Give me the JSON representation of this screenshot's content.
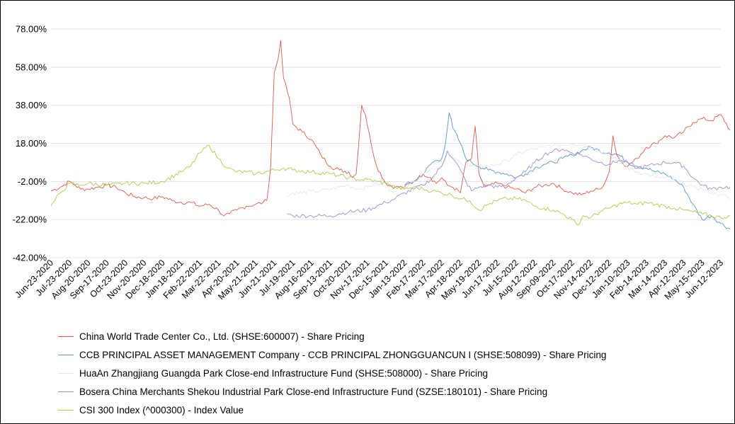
{
  "chart_data": {
    "type": "line",
    "title": "",
    "xlabel": "",
    "ylabel": "",
    "ylim": [
      -42,
      78
    ],
    "y_ticks": [
      "78.00%",
      "58.00%",
      "38.00%",
      "18.00%",
      "-2.00%",
      "-22.00%",
      "-42.00%"
    ],
    "y_tick_values": [
      78,
      58,
      38,
      18,
      -2,
      -22,
      -42
    ],
    "x_ticks": [
      "Jun-23-2020",
      "Jul-23-2020",
      "Aug-20-2020",
      "Sep-17-2020",
      "Oct-23-2020",
      "Nov-20-2020",
      "Dec-18-2020",
      "Jan-18-2021",
      "Feb-22-2021",
      "Mar-22-2021",
      "Apr-20-2021",
      "May-21-2021",
      "Jun-21-2021",
      "Jul-19-2021",
      "Aug-16-2021",
      "Sep-13-2021",
      "Oct-20-2021",
      "Nov-17-2021",
      "Dec-15-2021",
      "Jan-13-2022",
      "Feb-17-2022",
      "Mar-17-2022",
      "Apr-18-2022",
      "May-19-2022",
      "Jun-17-2022",
      "Jul-15-2022",
      "Aug-12-2022",
      "Sep-09-2022",
      "Oct-17-2022",
      "Nov-14-2022",
      "Dec-12-2022",
      "Jan-10-2023",
      "Feb-14-2023",
      "Mar-14-2023",
      "Apr-12-2023",
      "May-15-2023",
      "Jun-12-2023"
    ],
    "grid": true,
    "legend_position": "bottom",
    "series": [
      {
        "name": "China World Trade Center Co., Ltd. (SHSE:600007) - Share Pricing",
        "color": "#e05a4e",
        "points": [
          [
            0,
            -7
          ],
          [
            0.5,
            -5
          ],
          [
            1,
            -2
          ],
          [
            1.3,
            -4
          ],
          [
            1.6,
            -6
          ],
          [
            2,
            -6
          ],
          [
            2.5,
            -5
          ],
          [
            3,
            -4
          ],
          [
            3.5,
            -5
          ],
          [
            4,
            -8
          ],
          [
            4.5,
            -10
          ],
          [
            5,
            -10.5
          ],
          [
            5.5,
            -11
          ],
          [
            6,
            -10
          ],
          [
            6.5,
            -12
          ],
          [
            7,
            -13
          ],
          [
            7.5,
            -13
          ],
          [
            8,
            -15
          ],
          [
            8.5,
            -14
          ],
          [
            9,
            -17
          ],
          [
            9.3,
            -20
          ],
          [
            9.6,
            -19
          ],
          [
            10,
            -17
          ],
          [
            10.5,
            -15
          ],
          [
            11,
            -14
          ],
          [
            11.4,
            -13
          ],
          [
            11.6,
            -12
          ],
          [
            11.8,
            5
          ],
          [
            12,
            55
          ],
          [
            12.2,
            62
          ],
          [
            12.35,
            72
          ],
          [
            12.5,
            52
          ],
          [
            12.8,
            42
          ],
          [
            13,
            28
          ],
          [
            13.5,
            24
          ],
          [
            14,
            20
          ],
          [
            14.5,
            12
          ],
          [
            15,
            6
          ],
          [
            15.5,
            4
          ],
          [
            16,
            3
          ],
          [
            16.2,
            0
          ],
          [
            16.4,
            2
          ],
          [
            16.7,
            38
          ],
          [
            16.9,
            33
          ],
          [
            17.2,
            18
          ],
          [
            17.5,
            6
          ],
          [
            18,
            -3
          ],
          [
            18.5,
            -5
          ],
          [
            19,
            -5
          ],
          [
            19.5,
            -2
          ],
          [
            20,
            2
          ],
          [
            20.4,
            0
          ],
          [
            20.7,
            -3
          ],
          [
            21,
            0
          ],
          [
            21.3,
            -4
          ],
          [
            21.6,
            -5
          ],
          [
            22,
            -8
          ],
          [
            22.3,
            8
          ],
          [
            22.6,
            10
          ],
          [
            22.8,
            27
          ],
          [
            23,
            2
          ],
          [
            23.3,
            -5
          ],
          [
            23.6,
            -4
          ],
          [
            24,
            -3
          ],
          [
            24.5,
            -5
          ],
          [
            25,
            -6
          ],
          [
            25.5,
            -8
          ],
          [
            26,
            -5
          ],
          [
            26.5,
            -4
          ],
          [
            27,
            -3
          ],
          [
            27.5,
            -6
          ],
          [
            28,
            -8
          ],
          [
            28.5,
            -9
          ],
          [
            29,
            -7
          ],
          [
            29.5,
            -6
          ],
          [
            29.8,
            -2
          ],
          [
            30,
            3
          ],
          [
            30.2,
            22
          ],
          [
            30.4,
            12
          ],
          [
            30.7,
            8
          ],
          [
            31,
            6
          ],
          [
            31.5,
            10
          ],
          [
            32,
            16
          ],
          [
            32.5,
            18
          ],
          [
            33,
            22
          ],
          [
            33.5,
            21
          ],
          [
            34,
            24
          ],
          [
            34.5,
            29
          ],
          [
            35,
            31
          ],
          [
            35.5,
            30
          ],
          [
            36,
            33
          ],
          [
            36.5,
            25
          ]
        ]
      },
      {
        "name": "CCB PRINCIPAL ASSET MANAGEMENT Company - CCB PRINCIPAL ZHONGGUANCUN I (SHSE:508099) - Share Pricing",
        "color": "#5b95cf",
        "points": [
          [
            19,
            -4
          ],
          [
            19.5,
            -2
          ],
          [
            20,
            2
          ],
          [
            20.5,
            8
          ],
          [
            21,
            10
          ],
          [
            21.2,
            18
          ],
          [
            21.4,
            34
          ],
          [
            21.6,
            26
          ],
          [
            22,
            18
          ],
          [
            22.3,
            10
          ],
          [
            22.6,
            8
          ],
          [
            23,
            6
          ],
          [
            23.5,
            4
          ],
          [
            24,
            3
          ],
          [
            24.5,
            2
          ],
          [
            25,
            0
          ],
          [
            25.5,
            2
          ],
          [
            26,
            5
          ],
          [
            26.5,
            7
          ],
          [
            27,
            8
          ],
          [
            27.5,
            10
          ],
          [
            28,
            12
          ],
          [
            28.5,
            14
          ],
          [
            29,
            16
          ],
          [
            29.5,
            14
          ],
          [
            30,
            13
          ],
          [
            30.5,
            12
          ],
          [
            31,
            8
          ],
          [
            31.5,
            6
          ],
          [
            32,
            5
          ],
          [
            32.5,
            3
          ],
          [
            33,
            2
          ],
          [
            33.5,
            -1
          ],
          [
            34,
            -5
          ],
          [
            34.5,
            -14
          ],
          [
            35,
            -22
          ],
          [
            35.5,
            -20
          ],
          [
            36,
            -24
          ],
          [
            36.5,
            -27
          ]
        ]
      },
      {
        "name": "HuaAn Zhangjiang Guangda Park Close-end Infrastructure Fund (SHSE:508000) - Share Pricing",
        "color": "#e6e6ee",
        "points": [
          [
            12.7,
            -10
          ],
          [
            13,
            -8
          ],
          [
            13.5,
            -8
          ],
          [
            14,
            -7
          ],
          [
            14.5,
            -7
          ],
          [
            15,
            -6
          ],
          [
            15.5,
            -5
          ],
          [
            16,
            -4
          ],
          [
            16.5,
            -6
          ],
          [
            17,
            -5
          ],
          [
            17.5,
            -3
          ],
          [
            18,
            -5
          ],
          [
            18.5,
            -7
          ],
          [
            19,
            -5
          ],
          [
            19.5,
            -2
          ],
          [
            20,
            2
          ],
          [
            20.5,
            5
          ],
          [
            21,
            6
          ],
          [
            21.3,
            14
          ],
          [
            21.6,
            10
          ],
          [
            22,
            8
          ],
          [
            22.5,
            6
          ],
          [
            23,
            6
          ],
          [
            23.5,
            6
          ],
          [
            24,
            7
          ],
          [
            24.5,
            9
          ],
          [
            25,
            12
          ],
          [
            25.5,
            14
          ],
          [
            26,
            15
          ],
          [
            26.5,
            16
          ],
          [
            27,
            17
          ],
          [
            27.5,
            17
          ],
          [
            28,
            18
          ],
          [
            28.5,
            17
          ],
          [
            29,
            16
          ],
          [
            29.5,
            14
          ],
          [
            30,
            12
          ],
          [
            30.5,
            9
          ],
          [
            31,
            5
          ],
          [
            31.5,
            3
          ],
          [
            32,
            2
          ],
          [
            32.5,
            0
          ],
          [
            33,
            0
          ],
          [
            33.5,
            -1
          ],
          [
            34,
            -3
          ],
          [
            34.5,
            -5
          ],
          [
            35,
            -6
          ],
          [
            35.5,
            -8
          ],
          [
            36,
            -9
          ],
          [
            36.5,
            -11
          ]
        ]
      },
      {
        "name": "Bosera China Merchants Shekou Industrial Park Close-end Infrastructure Fund (SZSE:180101) - Share Pricing",
        "color": "#9e8fd8",
        "points": [
          [
            12.7,
            -19
          ],
          [
            13,
            -20
          ],
          [
            14,
            -20
          ],
          [
            15,
            -20
          ],
          [
            15.5,
            -19
          ],
          [
            16,
            -18
          ],
          [
            17,
            -17
          ],
          [
            17.5,
            -15
          ],
          [
            18,
            -13
          ],
          [
            18.5,
            -11
          ],
          [
            19,
            -8
          ],
          [
            19.5,
            -6
          ],
          [
            20,
            -4
          ],
          [
            20.5,
            0
          ],
          [
            21,
            6
          ],
          [
            21.3,
            14
          ],
          [
            21.6,
            10
          ],
          [
            22,
            4
          ],
          [
            22.3,
            -2
          ],
          [
            22.6,
            -7
          ],
          [
            23,
            -5
          ],
          [
            23.5,
            -4
          ],
          [
            24,
            -5
          ],
          [
            24.5,
            -4
          ],
          [
            25,
            0
          ],
          [
            25.5,
            3
          ],
          [
            26,
            8
          ],
          [
            26.5,
            12
          ],
          [
            27,
            14
          ],
          [
            27.5,
            15
          ],
          [
            28,
            13
          ],
          [
            28.5,
            12
          ],
          [
            29,
            10
          ],
          [
            29.5,
            8
          ],
          [
            30,
            7
          ],
          [
            30.5,
            9
          ],
          [
            31,
            8
          ],
          [
            31.5,
            5
          ],
          [
            32,
            6
          ],
          [
            32.5,
            7
          ],
          [
            33,
            8
          ],
          [
            33.5,
            8
          ],
          [
            34,
            6
          ],
          [
            34.5,
            0
          ],
          [
            35,
            -4
          ],
          [
            35.5,
            -6
          ],
          [
            36,
            -5
          ],
          [
            36.5,
            -5
          ]
        ]
      },
      {
        "name": "CSI 300 Index (^000300) - Index Value",
        "color": "#aacb4b",
        "points": [
          [
            0,
            -15
          ],
          [
            0.5,
            -8
          ],
          [
            1,
            -3
          ],
          [
            1.5,
            -4
          ],
          [
            2,
            -3
          ],
          [
            3,
            -4
          ],
          [
            4,
            -3
          ],
          [
            5,
            -3
          ],
          [
            6,
            -2
          ],
          [
            7,
            3
          ],
          [
            7.5,
            6
          ],
          [
            8,
            13
          ],
          [
            8.5,
            17
          ],
          [
            9,
            10
          ],
          [
            9.5,
            5
          ],
          [
            10,
            3
          ],
          [
            10.5,
            3
          ],
          [
            11,
            2
          ],
          [
            11.5,
            3
          ],
          [
            12,
            4
          ],
          [
            12.5,
            5
          ],
          [
            13,
            4
          ],
          [
            14,
            3
          ],
          [
            15,
            2
          ],
          [
            15.5,
            1
          ],
          [
            16,
            0
          ],
          [
            16.5,
            -1
          ],
          [
            17,
            -1
          ],
          [
            17.5,
            -2
          ],
          [
            18,
            -3
          ],
          [
            18.5,
            -5
          ],
          [
            19,
            -6
          ],
          [
            19.5,
            -5
          ],
          [
            20,
            -6
          ],
          [
            20.5,
            -7
          ],
          [
            21,
            -8
          ],
          [
            21.5,
            -9
          ],
          [
            22,
            -11
          ],
          [
            22.5,
            -12
          ],
          [
            23,
            -17
          ],
          [
            23.5,
            -14
          ],
          [
            24,
            -12
          ],
          [
            24.5,
            -11
          ],
          [
            25,
            -11
          ],
          [
            25.5,
            -12
          ],
          [
            26,
            -15
          ],
          [
            26.5,
            -16
          ],
          [
            27,
            -17
          ],
          [
            27.5,
            -19
          ],
          [
            28,
            -22
          ],
          [
            28.3,
            -25
          ],
          [
            28.6,
            -20
          ],
          [
            29,
            -21
          ],
          [
            29.5,
            -18
          ],
          [
            30,
            -16
          ],
          [
            30.5,
            -14
          ],
          [
            31,
            -13
          ],
          [
            31.5,
            -14
          ],
          [
            32,
            -13
          ],
          [
            32.5,
            -14
          ],
          [
            33,
            -15
          ],
          [
            33.5,
            -16
          ],
          [
            34,
            -17
          ],
          [
            34.5,
            -18
          ],
          [
            35,
            -19
          ],
          [
            35.5,
            -20
          ],
          [
            36,
            -21
          ],
          [
            36.5,
            -20
          ]
        ]
      }
    ]
  }
}
